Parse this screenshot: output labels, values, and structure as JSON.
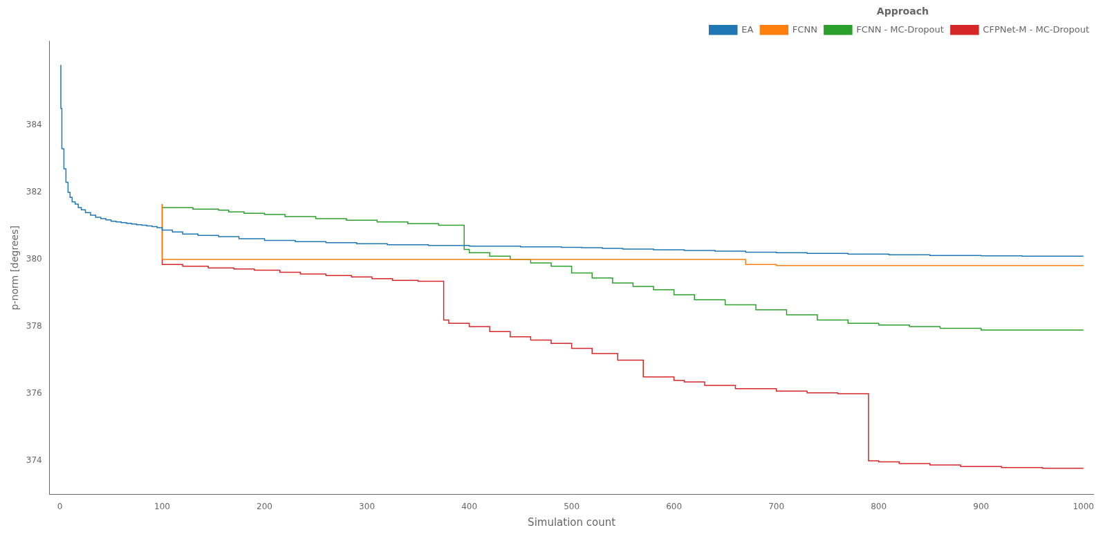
{
  "chart_data": {
    "type": "step",
    "x_label": "Simulation count",
    "y_label": "p-norm [degrees]",
    "legend_title": "Approach",
    "legend": "upper right",
    "grid": false,
    "xlim": [
      -10,
      1010
    ],
    "ylim": [
      373.0,
      386.5
    ],
    "xticks": [
      0,
      100,
      200,
      300,
      400,
      500,
      600,
      700,
      800,
      900,
      1000
    ],
    "yticks": [
      374,
      376,
      378,
      380,
      382,
      384
    ],
    "series": [
      {
        "name": "EA",
        "color": "#1f77b4",
        "x": [
          1,
          2,
          4,
          6,
          8,
          10,
          12,
          15,
          18,
          21,
          25,
          30,
          35,
          40,
          45,
          50,
          55,
          60,
          65,
          70,
          75,
          80,
          85,
          90,
          95,
          100,
          110,
          120,
          135,
          155,
          175,
          200,
          230,
          260,
          290,
          320,
          360,
          400,
          450,
          490,
          510,
          530,
          550,
          580,
          610,
          640,
          670,
          700,
          730,
          770,
          810,
          850,
          900,
          940,
          1000
        ],
        "values": [
          385.8,
          384.5,
          383.3,
          382.7,
          382.3,
          382.0,
          381.85,
          381.72,
          381.65,
          381.55,
          381.48,
          381.4,
          381.32,
          381.26,
          381.22,
          381.18,
          381.14,
          381.12,
          381.1,
          381.08,
          381.06,
          381.04,
          381.02,
          381.0,
          380.98,
          380.95,
          380.88,
          380.82,
          380.76,
          380.72,
          380.68,
          380.62,
          380.57,
          380.53,
          380.5,
          380.47,
          380.44,
          380.42,
          380.4,
          380.38,
          380.36,
          380.35,
          380.33,
          380.31,
          380.29,
          380.27,
          380.25,
          380.22,
          380.2,
          380.18,
          380.16,
          380.14,
          380.12,
          380.11,
          380.1
        ]
      },
      {
        "name": "FCNN",
        "color": "#ff7f0e",
        "drop_x": [
          100,
          100
        ],
        "drop_values": [
          381.65,
          380.0
        ],
        "x": [
          100,
          150,
          200,
          250,
          300,
          350,
          400,
          420,
          450,
          480,
          500,
          520,
          550,
          580,
          600,
          640,
          670,
          700,
          730,
          760,
          800,
          850,
          900,
          950,
          1000
        ],
        "values": [
          380.0,
          380.0,
          380.0,
          380.0,
          380.0,
          380.0,
          380.0,
          380.0,
          380.0,
          380.0,
          380.0,
          380.0,
          380.0,
          380.0,
          380.0,
          380.0,
          380.0,
          379.85,
          379.82,
          379.82,
          379.82,
          379.82,
          379.82,
          379.82,
          379.82
        ]
      },
      {
        "name": "FCNN - MC-Dropout",
        "color": "#2ca02c",
        "x": [
          100,
          130,
          155,
          165,
          180,
          200,
          220,
          250,
          280,
          310,
          340,
          370,
          395,
          400,
          420,
          440,
          460,
          480,
          500,
          520,
          540,
          560,
          580,
          600,
          620,
          650,
          680,
          710,
          740,
          770,
          800,
          830,
          860,
          900,
          940,
          1000
        ],
        "values": [
          381.6,
          381.55,
          381.5,
          381.47,
          381.42,
          381.38,
          381.34,
          381.28,
          381.22,
          381.17,
          381.12,
          381.07,
          381.02,
          380.3,
          380.2,
          380.1,
          380.0,
          379.9,
          379.8,
          379.6,
          379.45,
          379.3,
          379.2,
          379.1,
          378.95,
          378.8,
          378.65,
          378.5,
          378.35,
          378.2,
          378.1,
          378.05,
          378.0,
          377.95,
          377.9,
          377.9
        ]
      },
      {
        "name": "CFPNet-M - MC-Dropout",
        "color": "#d62728",
        "drop_x": [
          100,
          100
        ],
        "drop_values": [
          381.65,
          379.9
        ],
        "x": [
          100,
          120,
          145,
          170,
          190,
          215,
          235,
          260,
          285,
          305,
          325,
          350,
          375,
          380,
          400,
          420,
          440,
          460,
          480,
          500,
          520,
          545,
          570,
          600,
          610,
          630,
          660,
          700,
          730,
          760,
          790,
          800,
          820,
          850,
          880,
          920,
          960,
          1000
        ],
        "values": [
          379.9,
          379.85,
          379.8,
          379.75,
          379.72,
          379.68,
          379.62,
          379.57,
          379.52,
          379.48,
          379.43,
          379.38,
          379.35,
          378.2,
          378.1,
          378.0,
          377.85,
          377.7,
          377.6,
          377.5,
          377.35,
          377.2,
          377.0,
          376.5,
          376.4,
          376.35,
          376.25,
          376.15,
          376.08,
          376.03,
          376.0,
          374.0,
          373.97,
          373.92,
          373.88,
          373.83,
          373.8,
          373.78
        ]
      }
    ]
  }
}
